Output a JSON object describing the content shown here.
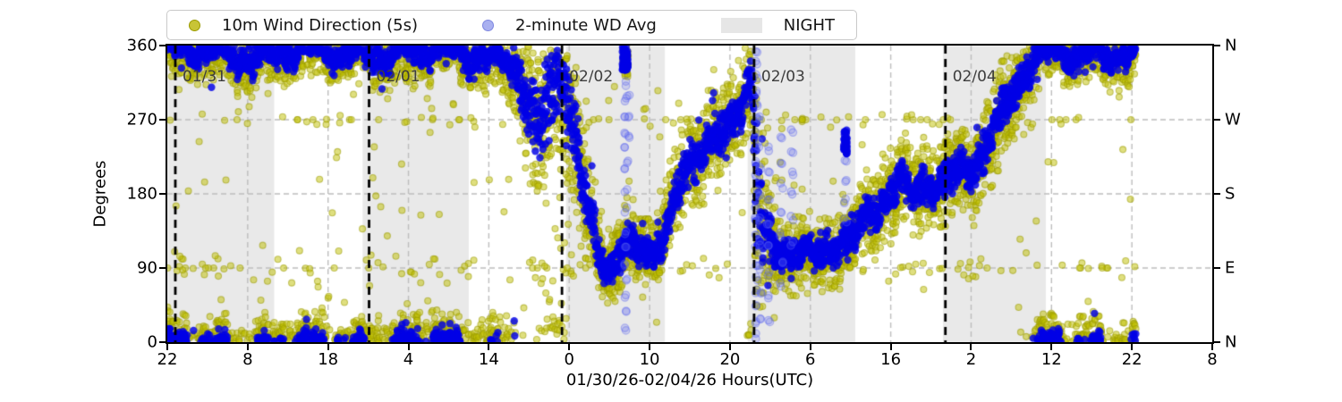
{
  "legend": {
    "items": [
      {
        "label": "10m Wind Direction (5s)",
        "marker": "dot",
        "color": "#c8c436",
        "edge": "#9b9b00"
      },
      {
        "label": "2-minute WD Avg",
        "marker": "dot",
        "color": "#a9b0f0",
        "edge": "#7d86e0"
      },
      {
        "label": "NIGHT",
        "marker": "patch",
        "color": "#e6e6e6",
        "edge": "#e6e6e6"
      }
    ]
  },
  "axes": {
    "y": {
      "title": "Degrees",
      "lim": [
        0,
        360
      ],
      "ticks": [
        {
          "value": 0,
          "label": "0"
        },
        {
          "value": 90,
          "label": "90"
        },
        {
          "value": 180,
          "label": "180"
        },
        {
          "value": 270,
          "label": "270"
        },
        {
          "value": 360,
          "label": "360"
        }
      ],
      "gridlines": [
        90,
        180,
        270
      ]
    },
    "y_right": {
      "ticks": [
        {
          "value": 0,
          "label": "N"
        },
        {
          "value": 90,
          "label": "E"
        },
        {
          "value": 180,
          "label": "S"
        },
        {
          "value": 270,
          "label": "W"
        },
        {
          "value": 360,
          "label": "N"
        }
      ]
    },
    "x": {
      "title": "01/30/26-02/04/26  Hours(UTC)",
      "span_hours": [
        0,
        130
      ],
      "ticks": [
        {
          "hour": 0,
          "label": "22"
        },
        {
          "hour": 10,
          "label": "8"
        },
        {
          "hour": 20,
          "label": "18"
        },
        {
          "hour": 30,
          "label": "4"
        },
        {
          "hour": 40,
          "label": "14"
        },
        {
          "hour": 50,
          "label": "0"
        },
        {
          "hour": 60,
          "label": "10"
        },
        {
          "hour": 70,
          "label": "20"
        },
        {
          "hour": 80,
          "label": "6"
        },
        {
          "hour": 90,
          "label": "16"
        },
        {
          "hour": 100,
          "label": "2"
        },
        {
          "hour": 110,
          "label": "12"
        },
        {
          "hour": 120,
          "label": "22"
        },
        {
          "hour": 130,
          "label": "8"
        }
      ]
    }
  },
  "day_lines": [
    {
      "hour": 1.0,
      "label": "01/31"
    },
    {
      "hour": 25.1,
      "label": "02/01"
    },
    {
      "hour": 49.1,
      "label": "02/02"
    },
    {
      "hour": 73.0,
      "label": "02/03"
    },
    {
      "hour": 96.8,
      "label": "02/04"
    }
  ],
  "night_bands": {
    "label": "NIGHT",
    "intervals_hours": [
      [
        0,
        13.3
      ],
      [
        24.3,
        37.5
      ],
      [
        49.6,
        61.9
      ],
      [
        72.2,
        85.6
      ],
      [
        96.5,
        109.3
      ]
    ]
  },
  "colors": {
    "series_5s": "#bfbf00",
    "series_5s_edge": "#9b9b00",
    "series_avg": "#0000e6",
    "series_avg_light": "#5a64f0",
    "night": "#e9e9e9",
    "grid": "#bdbdbd",
    "day_line": "#000000",
    "day_label": "#3d3d3d",
    "spine": "#000000"
  },
  "chart_data": {
    "type": "scatter",
    "title": "",
    "xlabel": "01/30/26-02/04/26  Hours(UTC)",
    "ylabel": "Degrees",
    "ylim": [
      0,
      360
    ],
    "x_hours_span": [
      0,
      130
    ],
    "x_start": "01/30 22:00 UTC",
    "data_end_hour": 120.5,
    "legend_position": "above-top-left",
    "grid": true,
    "series": [
      {
        "name": "10m Wind Direction (5s)",
        "color": "#bfbf00",
        "alpha": 0.5,
        "marker_radius": 3.5,
        "step_hours": 0.022,
        "mean_waypoints_hour_deg_spread": [
          [
            0,
            355,
            26
          ],
          [
            3,
            352,
            26
          ],
          [
            6,
            354,
            27
          ],
          [
            9,
            349,
            29
          ],
          [
            12,
            346,
            31
          ],
          [
            15,
            352,
            27
          ],
          [
            18,
            354,
            26
          ],
          [
            21,
            350,
            27
          ],
          [
            24,
            353,
            27
          ],
          [
            27,
            350,
            30
          ],
          [
            30,
            353,
            32
          ],
          [
            33,
            356,
            29
          ],
          [
            36,
            352,
            28
          ],
          [
            39,
            348,
            30
          ],
          [
            42,
            344,
            33
          ],
          [
            43.5,
            332,
            44
          ],
          [
            45,
            288,
            70
          ],
          [
            46.2,
            248,
            88
          ],
          [
            47.4,
            295,
            97
          ],
          [
            48.6,
            325,
            88
          ],
          [
            49.6,
            298,
            92
          ],
          [
            50.6,
            252,
            76
          ],
          [
            51.6,
            196,
            64
          ],
          [
            52.6,
            142,
            54
          ],
          [
            53.6,
            112,
            44
          ],
          [
            54.6,
            94,
            37
          ],
          [
            55.6,
            102,
            36
          ],
          [
            56.6,
            116,
            37
          ],
          [
            57.3,
            126,
            40
          ],
          [
            58.2,
            108,
            35
          ],
          [
            59.2,
            118,
            34
          ],
          [
            60.2,
            108,
            34
          ],
          [
            61.2,
            123,
            35
          ],
          [
            62.2,
            140,
            37
          ],
          [
            63.2,
            168,
            41
          ],
          [
            64.2,
            196,
            43
          ],
          [
            65.2,
            216,
            45
          ],
          [
            66.2,
            228,
            45
          ],
          [
            67.2,
            246,
            45
          ],
          [
            68.2,
            252,
            45
          ],
          [
            69.2,
            248,
            45
          ],
          [
            70.2,
            268,
            46
          ],
          [
            71.2,
            290,
            48
          ],
          [
            72,
            316,
            50
          ],
          [
            72.7,
            336,
            46
          ],
          [
            73.3,
            200,
            170
          ],
          [
            74.1,
            132,
            92
          ],
          [
            74.9,
            116,
            60
          ],
          [
            75.7,
            108,
            42
          ],
          [
            77,
            104,
            36
          ],
          [
            78.5,
            116,
            36
          ],
          [
            80,
            102,
            34
          ],
          [
            81.5,
            96,
            34
          ],
          [
            83,
            118,
            36
          ],
          [
            84.5,
            129,
            38
          ],
          [
            85.5,
            133,
            37
          ],
          [
            87,
            149,
            38
          ],
          [
            88.5,
            169,
            40
          ],
          [
            90,
            190,
            42
          ],
          [
            91,
            199,
            42
          ],
          [
            92,
            183,
            40
          ],
          [
            93,
            176,
            39
          ],
          [
            94,
            189,
            39
          ],
          [
            95,
            193,
            38
          ],
          [
            96.5,
            187,
            39
          ],
          [
            98,
            201,
            40
          ],
          [
            99.5,
            209,
            41
          ],
          [
            101,
            223,
            42
          ],
          [
            102.5,
            249,
            45
          ],
          [
            104,
            281,
            47
          ],
          [
            105.5,
            311,
            45
          ],
          [
            107,
            333,
            40
          ],
          [
            108.5,
            348,
            33
          ],
          [
            110,
            354,
            29
          ],
          [
            112,
            350,
            28
          ],
          [
            114,
            347,
            30
          ],
          [
            116,
            352,
            28
          ],
          [
            118,
            349,
            28
          ],
          [
            120.5,
            354,
            27
          ]
        ]
      },
      {
        "name": "2-minute WD Avg",
        "color": "#0000e6",
        "alpha": 0.82,
        "marker_radius": 4.2,
        "step_hours": 0.0333,
        "spread_factor": 0.42
      }
    ],
    "outliers_5s": {
      "total": 330,
      "near_90": {
        "center": 90,
        "halfwidth": 22,
        "fraction": 0.28
      },
      "near_270": {
        "center": 268,
        "halfwidth": 16,
        "fraction": 0.2
      },
      "exact_90_fraction": 0.09,
      "exact_270_fraction": 0.07,
      "uniform_range": [
        40,
        320
      ]
    },
    "yellow_patches": [
      {
        "hour_range": [
          56.6,
          57.35
        ],
        "deg_range": [
          322,
          360
        ],
        "count": 30
      }
    ],
    "avg_blobs": [
      {
        "hour_range": [
          56.6,
          57.3
        ],
        "deg_range": [
          330,
          358
        ],
        "count": 70
      },
      {
        "hour_range": [
          84.15,
          84.55
        ],
        "deg_range": [
          228,
          258
        ],
        "count": 40
      }
    ],
    "avg_columns": [
      {
        "hour": 57.05,
        "degrees": [
          15,
          35,
          55,
          75,
          95,
          115,
          135,
          160,
          185,
          210,
          235,
          255,
          275,
          295,
          315
        ]
      },
      {
        "hour": 57.35,
        "degrees": [
          300,
          272,
          248,
          220
        ]
      },
      {
        "hour": 73.3,
        "degrees": [
          8,
          25,
          42,
          60,
          78,
          95,
          112,
          130,
          148,
          165,
          182,
          200,
          218,
          235,
          252,
          270,
          288,
          305,
          322,
          340,
          355
        ]
      },
      {
        "hour": 73.7,
        "degrees": [
          30,
          60,
          90,
          120,
          150,
          180,
          210,
          240,
          270
        ]
      },
      {
        "hour": 74.8,
        "degrees": [
          25,
          55,
          85,
          115,
          145,
          175,
          205,
          235
        ]
      },
      {
        "hour": 76.4,
        "degrees": [
          70,
          100,
          130,
          160,
          190,
          220,
          245
        ]
      },
      {
        "hour": 77.7,
        "degrees": [
          120,
          150,
          180,
          205,
          232,
          256
        ]
      },
      {
        "hour": 84.35,
        "degrees": [
          148,
          172,
          198,
          222,
          246
        ]
      }
    ]
  }
}
